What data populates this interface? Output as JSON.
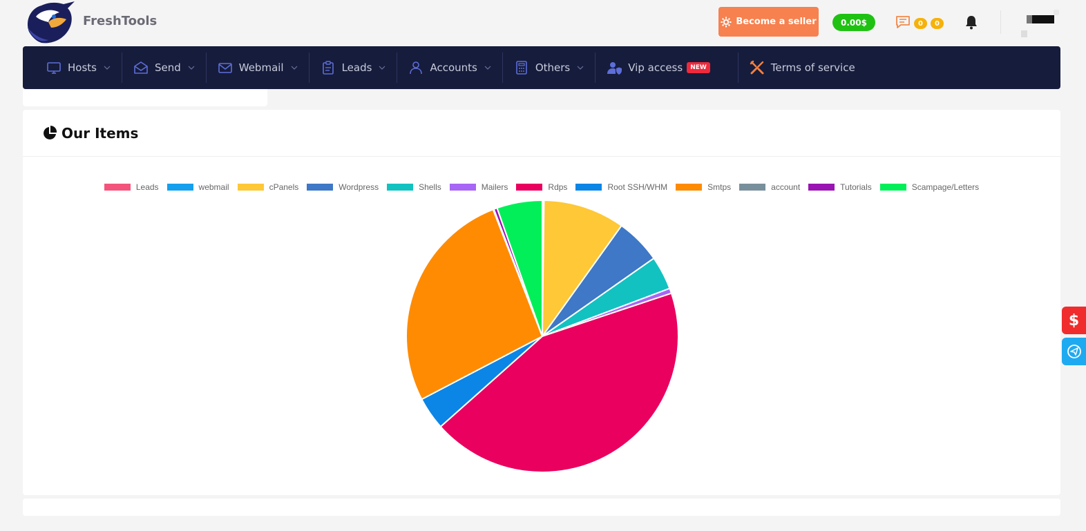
{
  "app": {
    "brand": "FreshTools"
  },
  "header": {
    "seller_label": "Become a seller",
    "balance": "0.00$",
    "messages_count": "0",
    "orders_count": "0"
  },
  "nav": {
    "items": [
      {
        "label": "Hosts",
        "icon": "monitor-icon",
        "has_dropdown": true
      },
      {
        "label": "Send",
        "icon": "mail-open-icon",
        "has_dropdown": true
      },
      {
        "label": "Webmail",
        "icon": "envelope-icon",
        "has_dropdown": true
      },
      {
        "label": "Leads",
        "icon": "clipboard-icon",
        "has_dropdown": true
      },
      {
        "label": "Accounts",
        "icon": "user-icon",
        "has_dropdown": true
      },
      {
        "label": "Others",
        "icon": "calculator-icon",
        "has_dropdown": true
      },
      {
        "label": "Vip access",
        "icon": "user-shield-icon",
        "badge": "NEW",
        "has_dropdown": false
      },
      {
        "label": "Terms of service",
        "icon": "tools-icon",
        "has_dropdown": false
      }
    ]
  },
  "card": {
    "title": "Our Items"
  },
  "chart_data": {
    "type": "pie",
    "title": "",
    "categories": [
      "Leads",
      "webmail",
      "cPanels",
      "Wordpress",
      "Shells",
      "Mailers",
      "Rdps",
      "Root SSH/WHM",
      "Smtps",
      "account",
      "Tutorials",
      "Scampage/Letters"
    ],
    "colors": [
      "#f4547b",
      "#14a0ee",
      "#fec836",
      "#3e78c6",
      "#12c2c1",
      "#a766f5",
      "#ea005e",
      "#0b86e6",
      "#ff8b02",
      "#78909c",
      "#9a14b3",
      "#03ef5a"
    ],
    "values": [
      0.1,
      0.1,
      9.7,
      5.4,
      4.0,
      0.6,
      43.6,
      3.9,
      26.8,
      0.1,
      0.4,
      5.4
    ],
    "legend": "top-center",
    "start_angle_deg": 0
  },
  "sidebar_widgets": {
    "dollar_label": "$"
  }
}
